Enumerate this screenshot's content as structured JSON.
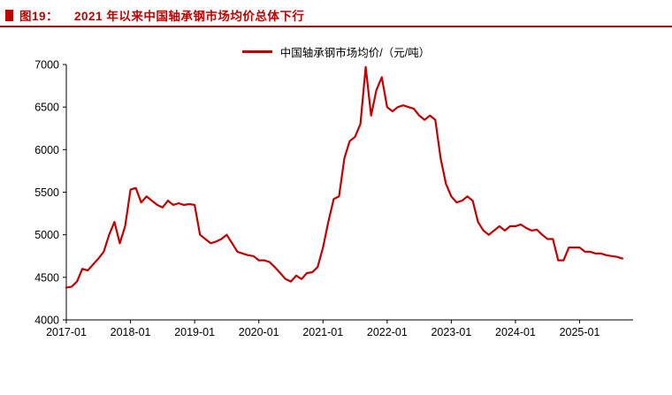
{
  "header": {
    "figure_label": "图19：",
    "title": "2021 年以来中国轴承钢市场均价总体下行"
  },
  "colors": {
    "accent": "#c00000",
    "line": "#c00000",
    "axis_text": "#000000"
  },
  "chart_data": {
    "type": "line",
    "title": "2021 年以来中国轴承钢市场均价总体下行",
    "legend_position": "top-center",
    "grid": false,
    "ylim": [
      4000,
      7000
    ],
    "y_ticks": [
      4000,
      4500,
      5000,
      5500,
      6000,
      6500,
      7000
    ],
    "x_tick_labels": [
      "2017-01",
      "2018-01",
      "2019-01",
      "2020-01",
      "2021-01",
      "2022-01",
      "2023-01",
      "2024-01",
      "2025-01"
    ],
    "x_tick_month_indices": [
      0,
      12,
      24,
      36,
      48,
      60,
      72,
      84,
      96
    ],
    "x_axis_month_span": 106,
    "line_color": "#c00000",
    "series": [
      {
        "name": "中国轴承钢市场均价/（元/吨）",
        "unit": "元/吨",
        "start_month": "2017-01",
        "frequency": "monthly",
        "values": [
          4380,
          4390,
          4450,
          4600,
          4580,
          4650,
          4720,
          4800,
          5000,
          5150,
          4900,
          5100,
          5530,
          5550,
          5380,
          5450,
          5400,
          5350,
          5320,
          5400,
          5350,
          5370,
          5350,
          5360,
          5350,
          5000,
          4950,
          4900,
          4920,
          4950,
          5000,
          4900,
          4800,
          4780,
          4760,
          4750,
          4700,
          4700,
          4680,
          4620,
          4550,
          4480,
          4450,
          4520,
          4480,
          4550,
          4560,
          4620,
          4850,
          5150,
          5420,
          5450,
          5900,
          6100,
          6150,
          6300,
          6970,
          6400,
          6700,
          6850,
          6500,
          6450,
          6500,
          6520,
          6500,
          6480,
          6400,
          6350,
          6400,
          6350,
          5900,
          5600,
          5450,
          5380,
          5400,
          5450,
          5400,
          5150,
          5050,
          5000,
          5050,
          5100,
          5050,
          5100,
          5100,
          5120,
          5080,
          5050,
          5060,
          5000,
          4950,
          4950,
          4700,
          4700,
          4850,
          4850,
          4850,
          4800,
          4800,
          4780,
          4780,
          4760,
          4750,
          4740,
          4720
        ]
      }
    ]
  }
}
